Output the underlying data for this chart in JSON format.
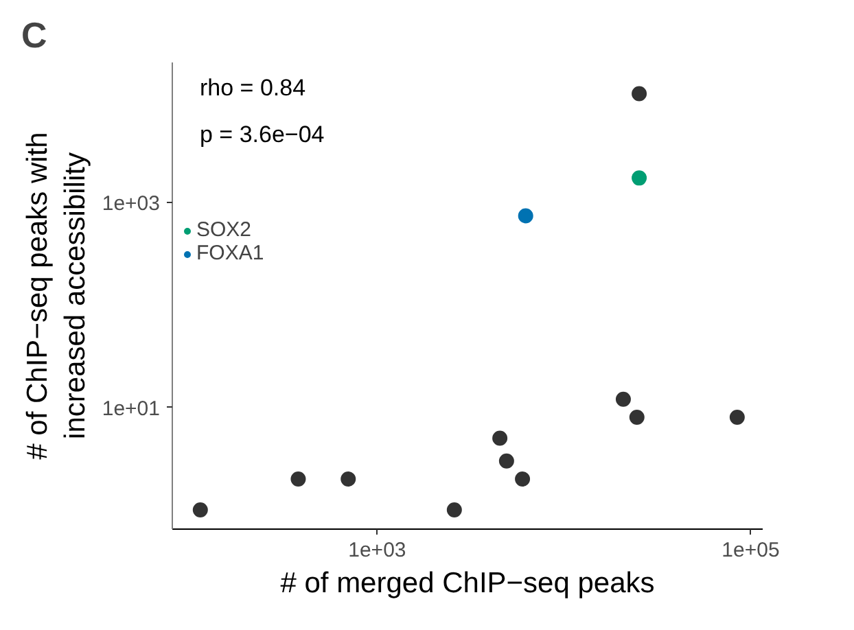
{
  "chart_data": {
    "type": "scatter",
    "title": "C",
    "xlabel": "# of merged ChIP−seq peaks",
    "ylabel": "# of ChIP−seq peaks with\nincreased accessibility",
    "log": "xy",
    "xlim": [
      80,
      116000
    ],
    "ylim": [
      0.65,
      23000
    ],
    "xticks": [
      {
        "value": 1000,
        "label": "1e+03"
      },
      {
        "value": 100000,
        "label": "1e+05"
      }
    ],
    "yticks": [
      {
        "value": 10,
        "label": "1e+01"
      },
      {
        "value": 1000,
        "label": "1e+03"
      }
    ],
    "grid": false,
    "legend": "top left",
    "marker": "circle",
    "annotations": [
      "rho = 0.84",
      "p = 3.6e−04"
    ],
    "series": [
      {
        "color": "#333333",
        "x": [
          113,
          378,
          700,
          2590,
          4540,
          4930,
          6000,
          20800,
          24600,
          25300,
          84700
        ],
        "values": [
          1,
          2,
          2,
          1,
          5,
          3,
          2,
          12,
          8,
          11400,
          8
        ]
      },
      {
        "name": "SOX2",
        "color": "#009e73",
        "x": [
          25300
        ],
        "values": [
          1720
        ]
      },
      {
        "name": "FOXA1",
        "color": "#0072b2",
        "x": [
          6240
        ],
        "values": [
          736
        ]
      }
    ]
  }
}
